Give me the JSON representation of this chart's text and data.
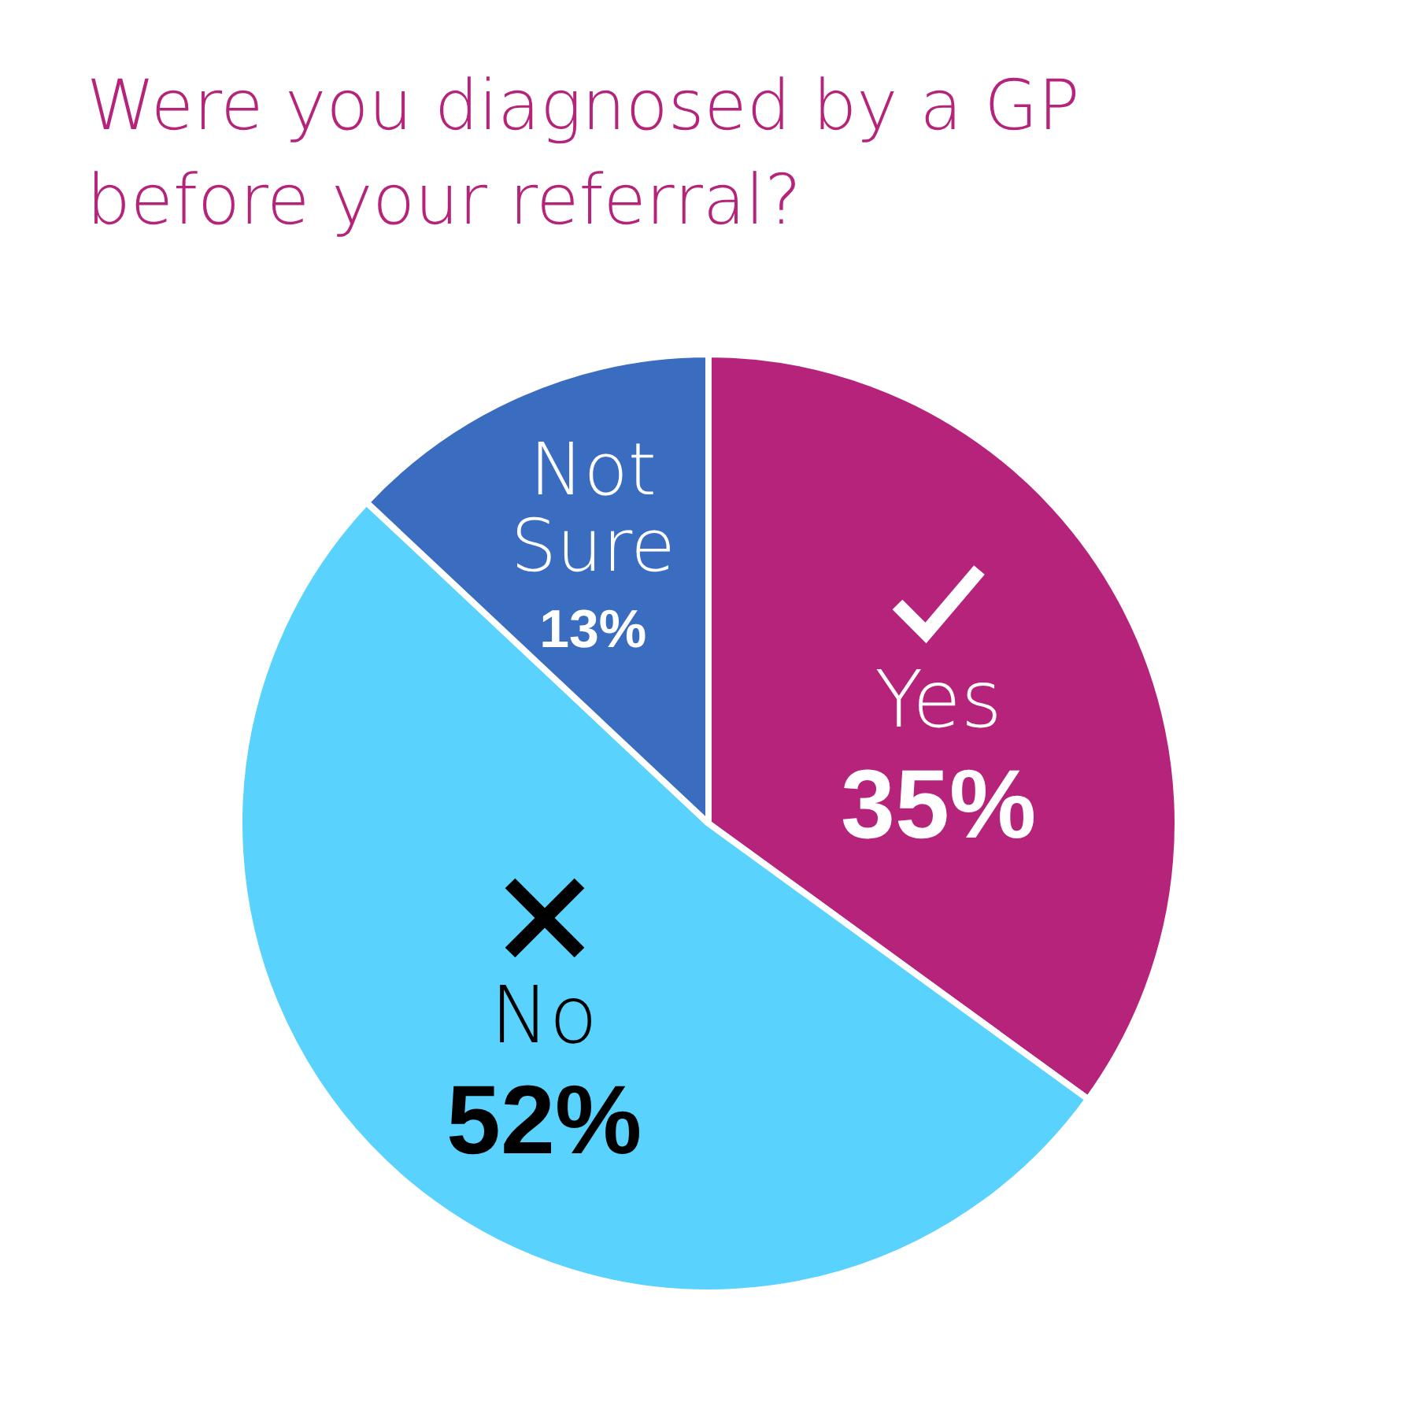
{
  "chart_data": {
    "type": "pie",
    "title": "Were you diagnosed by a GP before your referral?",
    "categories": [
      "Yes",
      "No",
      "Not Sure"
    ],
    "values": [
      35,
      52,
      13
    ],
    "value_labels": [
      "35%",
      "52%",
      "13%"
    ],
    "colors": [
      "#b5247a",
      "#5ad2fe",
      "#3a6cbf"
    ],
    "legend": false
  }
}
